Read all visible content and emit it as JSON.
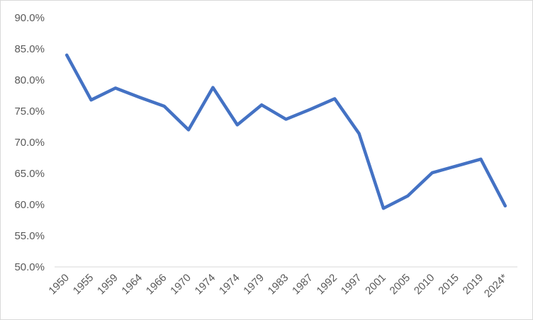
{
  "chart_data": {
    "type": "line",
    "categories": [
      "1950",
      "1955",
      "1959",
      "1964",
      "1966",
      "1970",
      "1974",
      "1974",
      "1979",
      "1983",
      "1987",
      "1992",
      "1997",
      "2001",
      "2005",
      "2010",
      "2015",
      "2019",
      "2024*"
    ],
    "series": [
      {
        "values": [
          84.0,
          76.8,
          78.7,
          77.2,
          75.8,
          72.0,
          78.8,
          72.8,
          76.0,
          73.7,
          75.3,
          77.0,
          71.4,
          59.4,
          61.4,
          65.1,
          66.2,
          67.3,
          59.8
        ],
        "color": "#4472c4"
      }
    ],
    "y_ticks": [
      "50.0%",
      "55.0%",
      "60.0%",
      "65.0%",
      "70.0%",
      "75.0%",
      "80.0%",
      "85.0%",
      "90.0%"
    ],
    "ylim": [
      50,
      90
    ],
    "grid": false,
    "legend": "none"
  }
}
